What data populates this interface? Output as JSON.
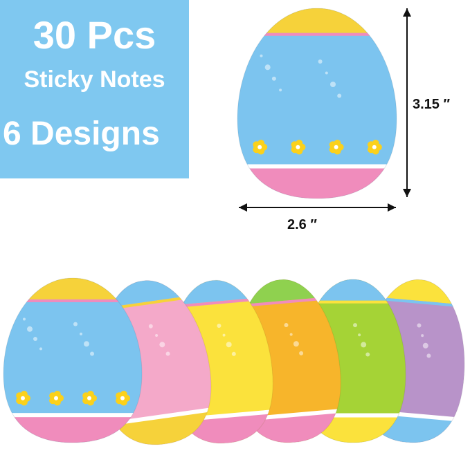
{
  "badge": {
    "quantity": "30 Pcs",
    "product": "Sticky Notes",
    "designs": "6 Designs",
    "color": "#7fc8f0"
  },
  "dimensions": {
    "height": "3.15 ″",
    "width": "2.6 ″"
  },
  "eggs": [
    {
      "design": "blue-flowers",
      "color": "#7cc4ef",
      "band": "#f6d23a",
      "accent": "#f08cbc"
    },
    {
      "design": "pink-drops",
      "color": "#f4a9c9",
      "band": "#7cc4ef",
      "accent": "#f6d23a"
    },
    {
      "design": "yellow-zigzag",
      "color": "#fbe23c",
      "band": "#7cc4ef",
      "accent": "#f08cbc"
    },
    {
      "design": "orange-stars",
      "color": "#f7b52b",
      "band": "#8fd14f",
      "accent": "#f08cbc"
    },
    {
      "design": "green-hearts",
      "color": "#a5d336",
      "band": "#7cc4ef",
      "accent": "#fbe23c"
    },
    {
      "design": "purple-waves",
      "color": "#b893c9",
      "band": "#fbe23c",
      "accent": "#7cc4ef"
    }
  ]
}
